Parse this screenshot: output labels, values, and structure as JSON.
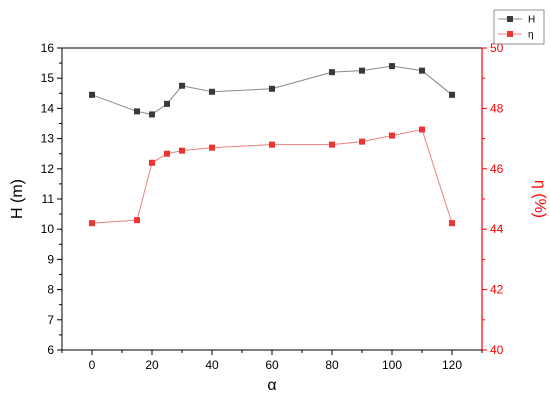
{
  "chart_data": {
    "type": "line",
    "x": [
      0,
      15,
      20,
      25,
      30,
      40,
      60,
      80,
      90,
      100,
      110,
      120
    ],
    "xlabel": "α",
    "xlim": [
      -10,
      130
    ],
    "xticks": [
      0,
      20,
      40,
      60,
      80,
      100,
      120
    ],
    "left_axis": {
      "label": "H (m)",
      "ylim": [
        6,
        16
      ],
      "ticks": [
        6,
        7,
        8,
        9,
        10,
        11,
        12,
        13,
        14,
        15,
        16
      ],
      "color": "#000000"
    },
    "right_axis": {
      "label": "η (%)",
      "ylim": [
        40,
        50
      ],
      "ticks": [
        40,
        42,
        44,
        46,
        48,
        50
      ],
      "color": "#ff0000"
    },
    "series": [
      {
        "name": "H",
        "axis": "left",
        "color": "#3a3a3a",
        "line_color": "#888888",
        "marker": "square",
        "values": [
          14.45,
          13.9,
          13.8,
          14.15,
          14.75,
          14.55,
          14.65,
          15.2,
          15.25,
          15.4,
          15.25,
          14.45
        ]
      },
      {
        "name": "η",
        "axis": "right",
        "color": "#ee3333",
        "line_color": "#f08080",
        "marker": "square",
        "values": [
          44.2,
          44.3,
          46.2,
          46.5,
          46.6,
          46.7,
          46.8,
          46.8,
          46.9,
          47.1,
          47.3,
          44.2
        ]
      }
    ],
    "legend_position": "top-right",
    "grid": false
  }
}
